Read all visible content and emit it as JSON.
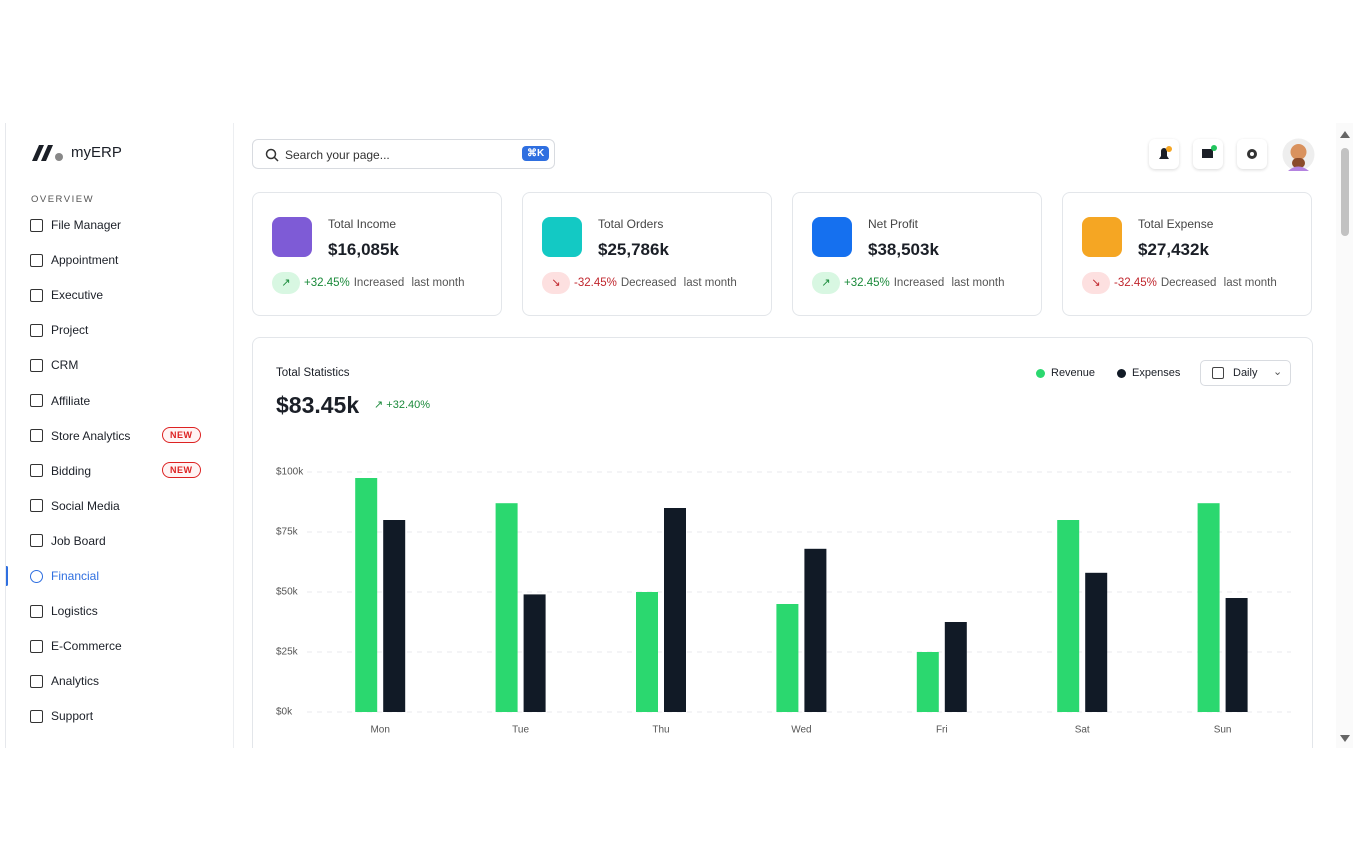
{
  "sidebar": {
    "brand": "myERP",
    "section": "OVERVIEW",
    "items": [
      {
        "label": "File Manager"
      },
      {
        "label": "Appointment"
      },
      {
        "label": "Executive"
      },
      {
        "label": "Project"
      },
      {
        "label": "CRM"
      },
      {
        "label": "Affiliate"
      },
      {
        "label": "Store Analytics",
        "badge": "NEW"
      },
      {
        "label": "Bidding",
        "badge": "NEW"
      },
      {
        "label": "Social Media"
      },
      {
        "label": "Job Board"
      },
      {
        "label": "Financial",
        "active": true
      },
      {
        "label": "Logistics"
      },
      {
        "label": "E-Commerce"
      },
      {
        "label": "Analytics"
      },
      {
        "label": "Support"
      }
    ]
  },
  "search": {
    "placeholder": "Search your page...",
    "shortcut": "⌘K"
  },
  "cards": [
    {
      "title": "Total Income",
      "value": "$16,085k",
      "change": "+32.45%",
      "status": "Increased",
      "period": "last month"
    },
    {
      "title": "Total Orders",
      "value": "$25,786k",
      "change": "-32.45%",
      "status": "Decreased",
      "period": "last month"
    },
    {
      "title": "Net Profit",
      "value": "$38,503k",
      "change": "+32.45%",
      "status": "Increased",
      "period": "last month"
    },
    {
      "title": "Total Expense",
      "value": "$27,432k",
      "change": "-32.45%",
      "status": "Decreased",
      "period": "last month"
    }
  ],
  "chart_data": {
    "type": "bar",
    "title": "Total Statistics",
    "total": "$83.45k",
    "change": "+32.40%",
    "period": "Daily",
    "categories": [
      "Mon",
      "Tue",
      "Thu",
      "Wed",
      "Fri",
      "Sat",
      "Sun"
    ],
    "series": [
      {
        "name": "Revenue",
        "color": "#2bd86f",
        "values": [
          97.5,
          87,
          50,
          45,
          25,
          80,
          87
        ]
      },
      {
        "name": "Expenses",
        "color": "#111a26",
        "values": [
          80,
          49,
          85,
          68,
          37.5,
          58,
          47.5
        ]
      }
    ],
    "ylim": [
      0,
      100
    ],
    "yticks": [
      {
        "value": 0,
        "label": "$0k"
      },
      {
        "value": 25,
        "label": "$25k"
      },
      {
        "value": 50,
        "label": "$50k"
      },
      {
        "value": 75,
        "label": "$75k"
      },
      {
        "value": 100,
        "label": "$100k"
      }
    ],
    "grid": true
  }
}
